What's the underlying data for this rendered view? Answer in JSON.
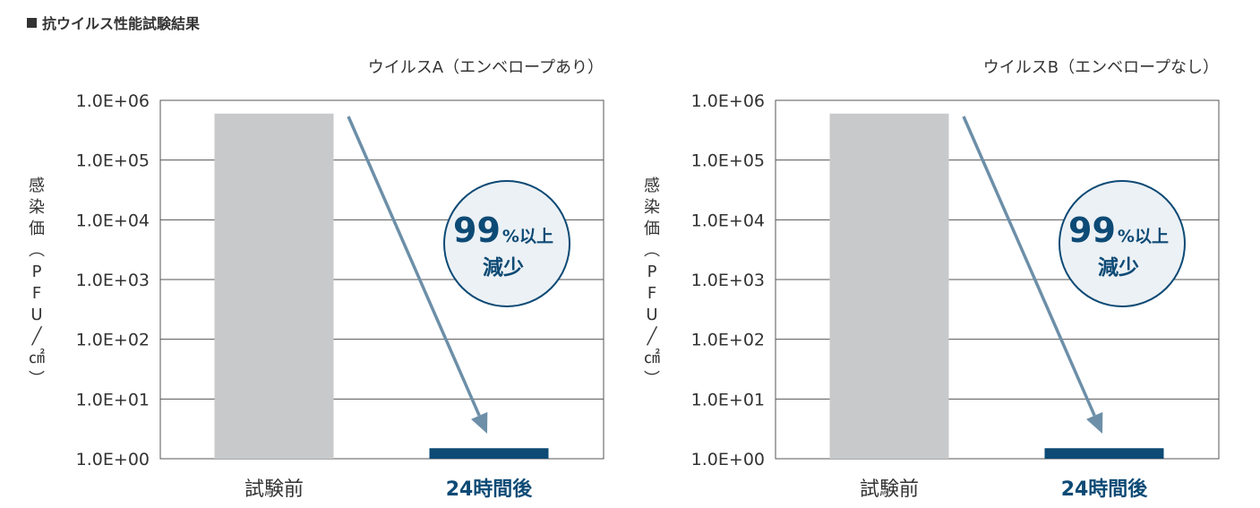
{
  "heading": "抗ウイルス性能試験結果",
  "colors": {
    "before_bar": "#c8c9ca",
    "after_bar": "#0d4a75",
    "arrow": "#6d8fa8",
    "circle_fill": "#ecf1f5",
    "circle_stroke": "#0d4a75",
    "text_dark": "#333333",
    "text_accent": "#0d4a75",
    "grid": "#555555"
  },
  "chart_data": [
    {
      "type": "bar",
      "title": "ウイルスA（エンベロープあり）",
      "ylabel": "感染価（PFU／㎠）",
      "yscale": "log",
      "ylim": [
        1,
        1000000
      ],
      "yticks": [
        "1.0E+00",
        "1.0E+01",
        "1.0E+02",
        "1.0E+03",
        "1.0E+04",
        "1.0E+05",
        "1.0E+06"
      ],
      "grid": true,
      "categories": [
        "試験前",
        "24時間後"
      ],
      "values": [
        600000,
        1.5
      ],
      "annotation": {
        "number": "99",
        "unit": "%以上",
        "text": "減少"
      }
    },
    {
      "type": "bar",
      "title": "ウイルスB（エンベロープなし）",
      "ylabel": "感染価（PFU／㎠）",
      "yscale": "log",
      "ylim": [
        1,
        1000000
      ],
      "yticks": [
        "1.0E+00",
        "1.0E+01",
        "1.0E+02",
        "1.0E+03",
        "1.0E+04",
        "1.0E+05",
        "1.0E+06"
      ],
      "grid": true,
      "categories": [
        "試験前",
        "24時間後"
      ],
      "values": [
        600000,
        1.5
      ],
      "annotation": {
        "number": "99",
        "unit": "%以上",
        "text": "減少"
      }
    }
  ]
}
